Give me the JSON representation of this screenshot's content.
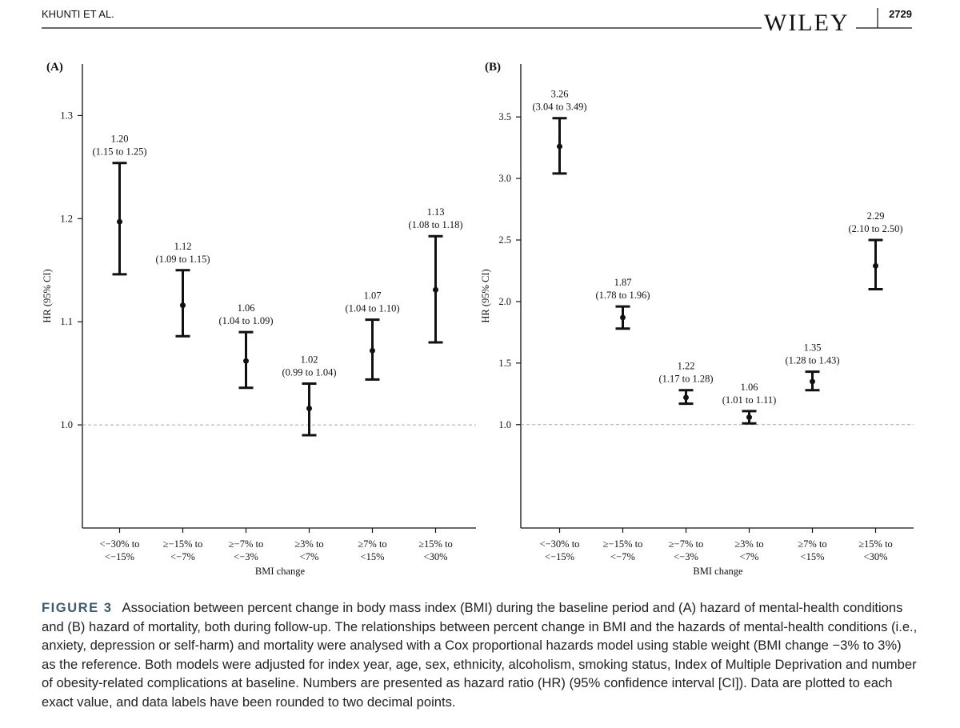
{
  "header": {
    "authors": "KHUNTI ET AL.",
    "publisher": "WILEY",
    "page": "2729"
  },
  "chart_data": [
    {
      "type": "errorbar",
      "panel": "(A)",
      "y_label": "HR (95% CI)",
      "x_label": "BMI change",
      "categories": [
        "<−30% to\n<−15%",
        "≥−15% to\n<−7%",
        "≥−7% to\n<−3%",
        "≥3% to\n<7%",
        "≥7% to\n<15%",
        "≥15% to\n<30%"
      ],
      "values": [
        1.197,
        1.116,
        1.062,
        1.016,
        1.072,
        1.131
      ],
      "lower": [
        1.146,
        1.086,
        1.036,
        0.99,
        1.044,
        1.08
      ],
      "upper": [
        1.254,
        1.15,
        1.09,
        1.04,
        1.102,
        1.183
      ],
      "value_labels": [
        "1.20\n(1.15 to 1.25)",
        "1.12\n(1.09 to 1.15)",
        "1.06\n(1.04 to 1.09)",
        "1.02\n(0.99 to 1.04)",
        "1.07\n(1.04 to 1.10)",
        "1.13\n(1.08 to 1.18)"
      ],
      "color": "#111111",
      "ylim": [
        0.9,
        1.35
      ],
      "yticks": [
        {
          "value": 1,
          "label": "1.0"
        },
        1.1,
        1.2,
        1.3
      ],
      "reference_line": 1
    },
    {
      "type": "errorbar",
      "panel": "(B)",
      "y_label": "HR (95% CI)",
      "x_label": "BMI change",
      "categories": [
        "<−30% to\n<−15%",
        "≥−15% to\n<−7%",
        "≥−7% to\n<−3%",
        "≥3% to\n<7%",
        "≥7% to\n<15%",
        "≥15% to\n<30%"
      ],
      "values": [
        3.26,
        1.87,
        1.22,
        1.06,
        1.35,
        2.29
      ],
      "lower": [
        3.04,
        1.78,
        1.17,
        1.01,
        1.28,
        2.1
      ],
      "upper": [
        3.49,
        1.96,
        1.28,
        1.11,
        1.43,
        2.5
      ],
      "value_labels": [
        "3.26\n(3.04 to 3.49)",
        "1.87\n(1.78 to 1.96)",
        "1.22\n(1.17 to 1.28)",
        "1.06\n(1.01 to 1.11)",
        "1.35\n(1.28 to 1.43)",
        "2.29\n(2.10 to 2.50)"
      ],
      "color": "#111111",
      "ylim": [
        0.16,
        3.93
      ],
      "yticks": [
        {
          "value": 1,
          "label": "1.0"
        },
        1.5,
        {
          "value": 2,
          "label": "2.0"
        },
        2.5,
        {
          "value": 3,
          "label": "3.0"
        },
        3.5
      ],
      "reference_line": 1
    }
  ],
  "caption": {
    "label": "FIGURE 3",
    "text": "Association between percent change in body mass index (BMI) during the baseline period and (A) hazard of mental-health conditions and (B) hazard of mortality, both during follow-up. The relationships between percent change in BMI and the hazards of mental-health conditions (i.e., anxiety, depression or self-harm) and mortality were analysed with a Cox proportional hazards model using stable weight (BMI change −3% to 3%) as the reference. Both models were adjusted for index year, age, sex, ethnicity, alcoholism, smoking status, Index of Multiple Deprivation and number of obesity-related complications at baseline. Numbers are presented as hazard ratio (HR) (95% confidence interval [CI]). Data are plotted to each exact value, and data labels have been rounded to two decimal points."
  }
}
